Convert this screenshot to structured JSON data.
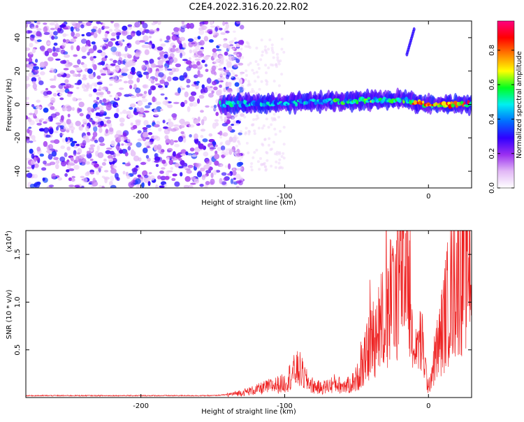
{
  "title": "C2E4.2022.316.20.22.R02",
  "chart_data": [
    {
      "type": "heatmap",
      "xlabel": "Height of straight line (km)",
      "ylabel": "Frequency (Hz)",
      "xlim": [
        -280,
        30
      ],
      "ylim": [
        -50,
        50
      ],
      "xticks": [
        -200,
        -100,
        0
      ],
      "yticks": [
        -40,
        -20,
        0,
        20,
        40
      ],
      "xtick_labels": [
        "-200",
        "-100",
        "0"
      ],
      "ytick_labels": [
        "-40",
        "-20",
        "0",
        "20",
        "40"
      ],
      "colorbar": {
        "label": "Normalized spectral amplitude",
        "range": [
          0,
          0.97
        ],
        "ticks": [
          0.0,
          0.2,
          0.4,
          0.6,
          0.8
        ],
        "tick_labels": [
          "0.0",
          "0.2",
          "0.4",
          "0.6",
          "0.8"
        ],
        "colormap": [
          "#ffffff",
          "#e2b8f6",
          "#9a2ff0",
          "#3000ff",
          "#0070ff",
          "#00f0f0",
          "#00ff20",
          "#ffff00",
          "#ff8000",
          "#ff0000",
          "#ff0080"
        ]
      },
      "features": {
        "noise_region_x": [
          -280,
          -135
        ],
        "noise_amplitude": 0.3,
        "spread_region_x": [
          -145,
          -100
        ],
        "band_start_x": -145,
        "band_end_x": 30,
        "band_center_hz": [
          {
            "x": -145,
            "f": 0
          },
          {
            "x": -100,
            "f": 1
          },
          {
            "x": -60,
            "f": 2
          },
          {
            "x": -20,
            "f": 3
          },
          {
            "x": 0,
            "f": 0
          },
          {
            "x": 30,
            "f": 0
          }
        ],
        "band_halfwidth_hz": 4,
        "peak_region_x": [
          -12,
          30
        ],
        "peak_amplitude": 0.9,
        "streak": {
          "x": [
            -15,
            -10
          ],
          "f": [
            30,
            45
          ]
        }
      }
    },
    {
      "type": "line",
      "xlabel": "Height of straight line (km)",
      "ylabel": "SNR (10 * v/v)",
      "y_multiplier": "(x10",
      "y_multiplier_exp": "4",
      "y_multiplier_close": ")",
      "xlim": [
        -280,
        30
      ],
      "ylim": [
        0,
        1.75
      ],
      "xticks": [
        -200,
        -100,
        0
      ],
      "yticks": [
        0.5,
        1.0,
        1.5
      ],
      "xtick_labels": [
        "-200",
        "-100",
        "0"
      ],
      "ytick_labels": [
        "0.5",
        "1.0",
        "1.5"
      ],
      "color": "#ee2222",
      "series": [
        {
          "x": [
            -280,
            -250,
            -200,
            -150,
            -140,
            -130,
            -120,
            -110,
            -100,
            -95,
            -90,
            -85,
            -80,
            -75,
            -70,
            -65,
            -60,
            -55,
            -50,
            -45,
            -40,
            -35,
            -30,
            -25,
            -20,
            -15,
            -12,
            -10,
            -8,
            -5,
            -2,
            0,
            2,
            5,
            8,
            10,
            12,
            15,
            18,
            20,
            22,
            25,
            28,
            30
          ],
          "values": [
            0.02,
            0.02,
            0.02,
            0.02,
            0.03,
            0.05,
            0.08,
            0.12,
            0.15,
            0.25,
            0.3,
            0.18,
            0.12,
            0.1,
            0.12,
            0.15,
            0.12,
            0.13,
            0.2,
            0.35,
            0.6,
            0.7,
            0.9,
            1.0,
            1.3,
            1.5,
            0.7,
            0.3,
            0.55,
            0.6,
            0.3,
            0.08,
            0.25,
            0.45,
            0.6,
            0.75,
            0.9,
            1.1,
            1.2,
            1.3,
            1.35,
            1.45,
            1.52,
            1.5
          ]
        }
      ]
    }
  ]
}
